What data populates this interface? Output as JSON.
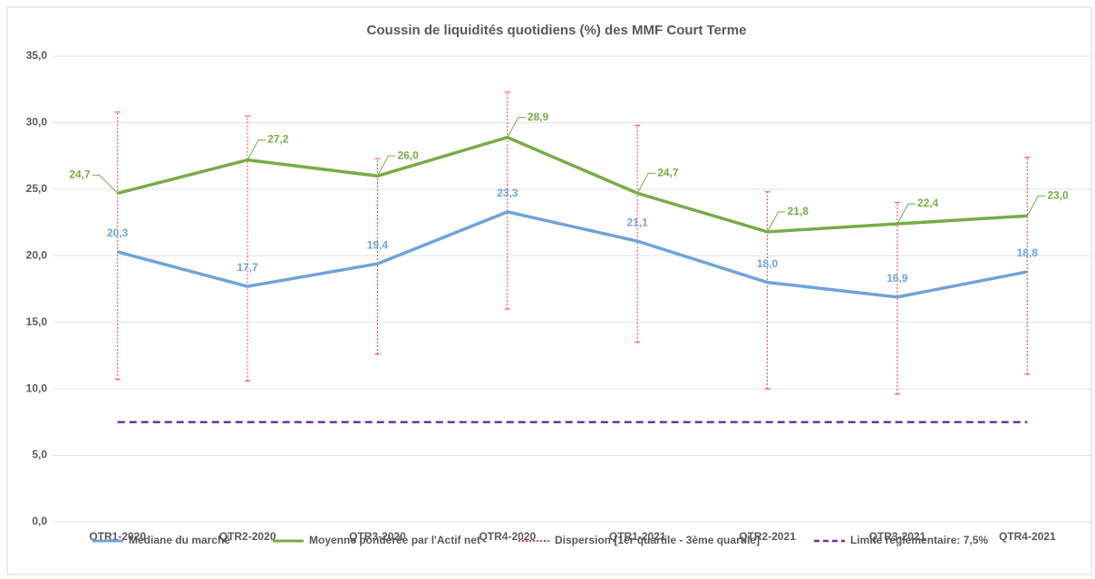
{
  "chart_data": {
    "type": "line",
    "title": "Coussin de liquidités quotidiens (%) des MMF Court Terme",
    "categories": [
      "QTR1-2020",
      "QTR2-2020",
      "QTR3-2020",
      "QTR4-2020",
      "QTR1-2021",
      "QTR2-2021",
      "QTR3-2021",
      "QTR4-2021"
    ],
    "series": [
      {
        "name": "Médiane du marché",
        "color": "#6fa3d8",
        "values": [
          20.3,
          17.7,
          19.4,
          23.3,
          21.1,
          18.0,
          16.9,
          18.8
        ],
        "value_labels": [
          "20,3",
          "17,7",
          "19,4",
          "23,3",
          "21,1",
          "18,0",
          "16,9",
          "18,8"
        ]
      },
      {
        "name": "Moyenne pondérée par l'Actif net",
        "color": "#77ac46",
        "values": [
          24.7,
          27.2,
          26.0,
          28.9,
          24.7,
          21.8,
          22.4,
          23.0
        ],
        "value_labels": [
          "24,7",
          "27,2",
          "26,0",
          "28,9",
          "24,7",
          "21,8",
          "22,4",
          "23,0"
        ]
      }
    ],
    "dispersion": {
      "name": "Dispersion [1er quartile - 3ème quartile]",
      "color": "#ff3b3b",
      "low": [
        10.7,
        10.6,
        12.6,
        16.0,
        13.5,
        10.0,
        9.6,
        11.1
      ],
      "high": [
        30.8,
        30.5,
        27.3,
        32.3,
        29.8,
        24.8,
        24.0,
        27.4
      ]
    },
    "limit": {
      "name": "Limite réglementaire: 7,5%",
      "color": "#7030a0",
      "value": 7.5
    },
    "ylim": [
      0,
      35
    ],
    "yticks": [
      {
        "value": 0,
        "label": "0,0"
      },
      {
        "value": 5,
        "label": "5,0"
      },
      {
        "value": 10,
        "label": "10,0"
      },
      {
        "value": 15,
        "label": "15,0"
      },
      {
        "value": 20,
        "label": "20,0"
      },
      {
        "value": 25,
        "label": "25,0"
      },
      {
        "value": 30,
        "label": "30,0"
      },
      {
        "value": 35,
        "label": "35,0"
      }
    ],
    "grid": true
  }
}
